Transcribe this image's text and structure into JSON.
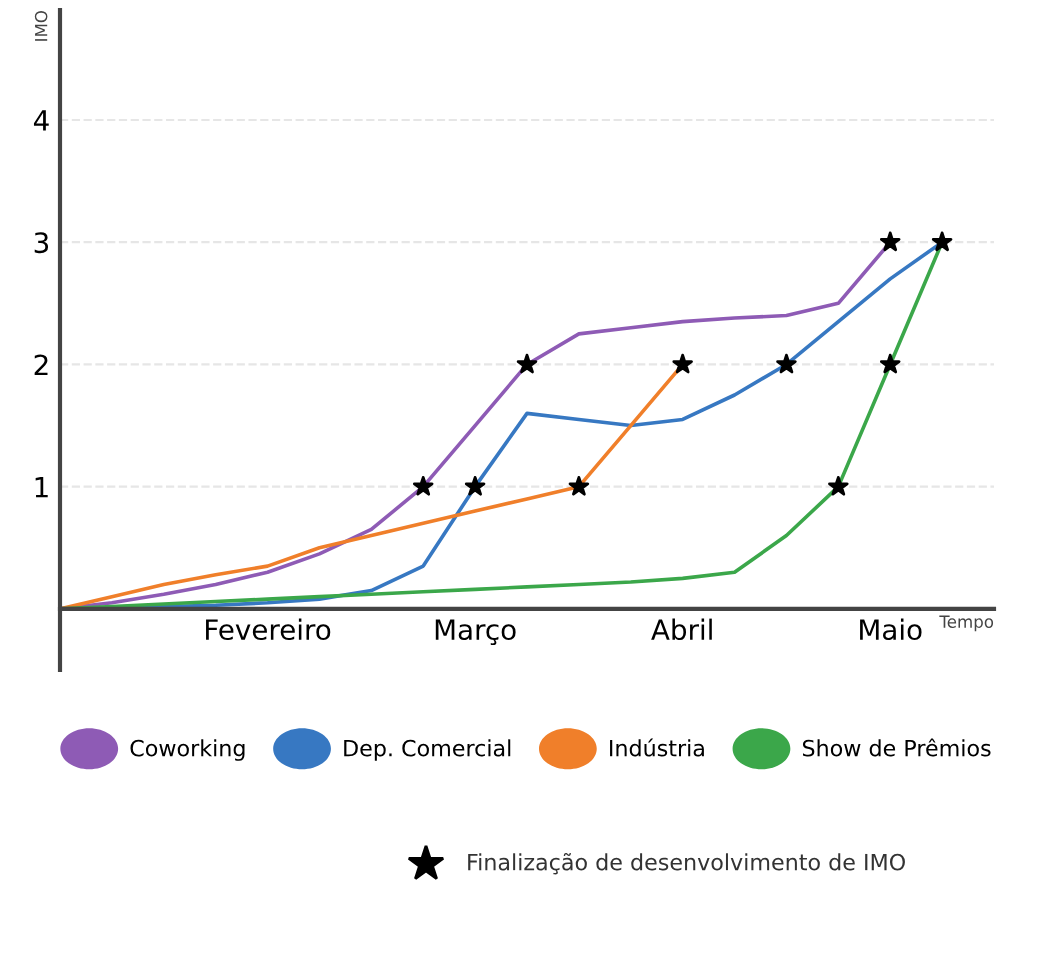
{
  "chart_data": {
    "type": "line",
    "xlabel": "Tempo",
    "ylabel": "IMO",
    "categories": [
      null,
      null,
      null,
      null,
      "Fevereiro",
      null,
      null,
      null,
      "Março",
      null,
      null,
      null,
      "Abril",
      null,
      null,
      null,
      "Maio",
      null,
      null
    ],
    "ylim": [
      -0.5,
      4.9
    ],
    "yticks": [
      1,
      2,
      3,
      4
    ],
    "grid": "y",
    "legend": "bottom",
    "marker": "none",
    "line_style": "solid",
    "series": [
      {
        "name": "Coworking",
        "color": "#8e5bb5",
        "values": [
          0,
          0.05,
          0.12,
          0.2,
          0.3,
          0.45,
          0.65,
          1.0,
          1.5,
          2.0,
          2.25,
          2.3,
          2.35,
          2.38,
          2.4,
          2.5,
          3.0,
          null,
          null
        ]
      },
      {
        "name": "Dep. Comercial",
        "color": "#3778c2",
        "values": [
          0,
          0,
          0.02,
          0.03,
          0.05,
          0.08,
          0.15,
          0.35,
          1.0,
          1.6,
          1.55,
          1.5,
          1.55,
          1.75,
          2.0,
          2.35,
          2.7,
          3.0,
          null
        ]
      },
      {
        "name": "Indústria",
        "color": "#f07f2a",
        "values": [
          0,
          0.1,
          0.2,
          0.28,
          0.35,
          0.5,
          0.6,
          0.7,
          0.8,
          0.9,
          1.0,
          1.5,
          2.0,
          null,
          null,
          null,
          null,
          null,
          null
        ]
      },
      {
        "name": "Show de Prêmios",
        "color": "#3ba74a",
        "values": [
          0,
          0.02,
          0.04,
          0.06,
          0.08,
          0.1,
          0.12,
          0.14,
          0.16,
          0.18,
          0.2,
          0.22,
          0.25,
          0.3,
          0.6,
          1.0,
          2.0,
          3.0,
          null
        ]
      },
      {
        "name": "Finalização de desenvolvimento de IMO",
        "type": "scatter",
        "marker": "star",
        "color": "#000000",
        "values": [
          null,
          null,
          null,
          null,
          null,
          null,
          null,
          1,
          1,
          2,
          1,
          null,
          2,
          null,
          2,
          1,
          3,
          3,
          null
        ]
      },
      {
        "type": "scatter",
        "marker": "star",
        "color": "#000000",
        "values": [
          null,
          null,
          null,
          null,
          null,
          null,
          null,
          null,
          null,
          null,
          null,
          null,
          null,
          null,
          null,
          null,
          2,
          null,
          null
        ]
      }
    ]
  }
}
